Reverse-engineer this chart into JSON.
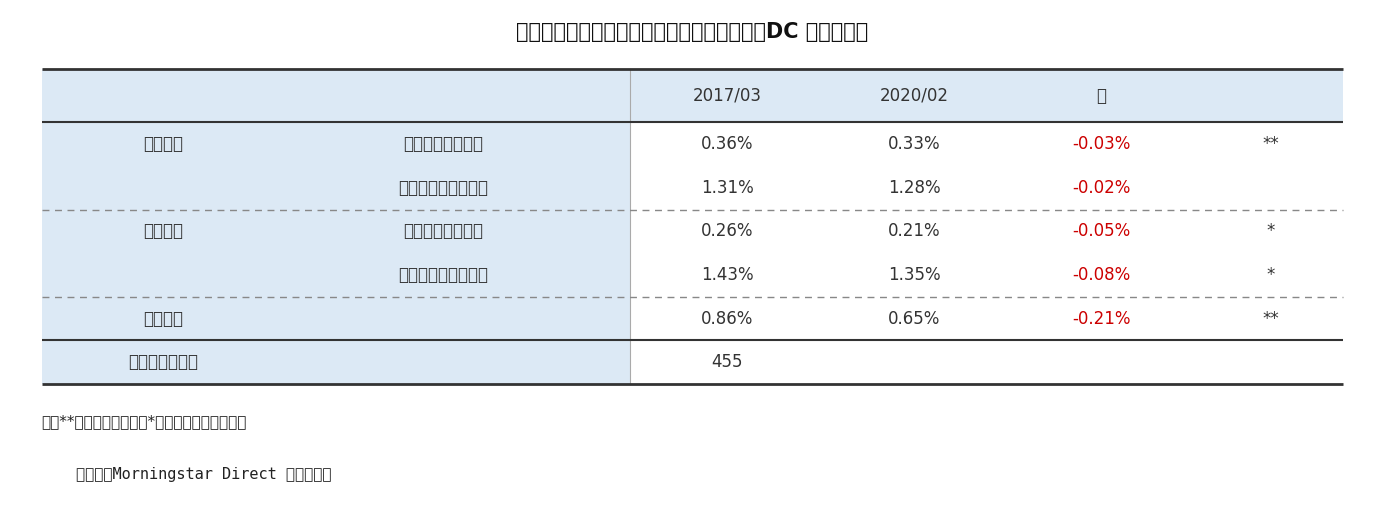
{
  "title": "図表２：（純資産加重平均）信託報酬の差（DC ファンド）",
  "title_fontsize": 15,
  "header_labels": [
    "2017/03",
    "2020/02",
    "差"
  ],
  "rows": [
    {
      "cat": "国内株式",
      "sub": "パッシブファンド",
      "v1": "0.36%",
      "v2": "0.33%",
      "diff": "-0.03%",
      "sig": "**",
      "diff_color": "#cc0000"
    },
    {
      "cat": "",
      "sub": "アクティブファンド",
      "v1": "1.31%",
      "v2": "1.28%",
      "diff": "-0.02%",
      "sig": "",
      "diff_color": "#cc0000"
    },
    {
      "cat": "外国株式",
      "sub": "パッシブファンド",
      "v1": "0.26%",
      "v2": "0.21%",
      "diff": "-0.05%",
      "sig": "*",
      "diff_color": "#cc0000"
    },
    {
      "cat": "",
      "sub": "アクティブファンド",
      "v1": "1.43%",
      "v2": "1.35%",
      "diff": "-0.08%",
      "sig": "*",
      "diff_color": "#cc0000"
    },
    {
      "cat": "外国債券",
      "sub": "",
      "v1": "0.86%",
      "v2": "0.65%",
      "diff": "-0.21%",
      "sig": "**",
      "diff_color": "#cc0000"
    },
    {
      "cat": "ファンド数合計",
      "sub": "",
      "v1": "455",
      "v2": "",
      "diff": "",
      "sig": "",
      "diff_color": "#000000"
    }
  ],
  "note1": "注：**は１％有意水準、*は５％有意水準を表す",
  "note2": "（資料：Morningstar Direct から作成）",
  "bg_color": "#dce9f5",
  "text_color": "#333333",
  "red_color": "#cc0000",
  "note_fontsize": 11,
  "cell_fontsize": 12
}
